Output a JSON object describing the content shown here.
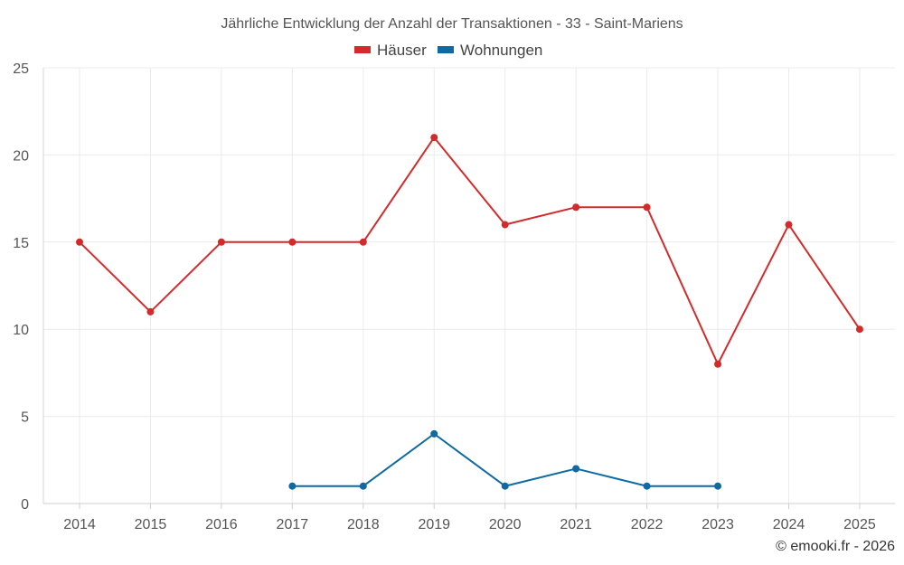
{
  "chart_data": {
    "type": "line",
    "title": "Jährliche Entwicklung der Anzahl der Transaktionen - 33 - Saint-Mariens",
    "xlabel": "",
    "ylabel": "",
    "categories": [
      "2014",
      "2015",
      "2016",
      "2017",
      "2018",
      "2019",
      "2020",
      "2021",
      "2022",
      "2023",
      "2024",
      "2025"
    ],
    "ylim": [
      0,
      25
    ],
    "yticks": [
      0,
      5,
      10,
      15,
      20,
      25
    ],
    "grid": true,
    "legend_position": "top-center",
    "series": [
      {
        "name": "Häuser",
        "color": "#d22b2b",
        "values": [
          15,
          11,
          15,
          15,
          15,
          21,
          16,
          17,
          17,
          8,
          16,
          10
        ]
      },
      {
        "name": "Wohnungen",
        "color": "#0e6aa3",
        "values": [
          null,
          null,
          null,
          1,
          1,
          4,
          1,
          2,
          1,
          1,
          null,
          null
        ]
      }
    ]
  },
  "credit": "© emooki.fr - 2026"
}
